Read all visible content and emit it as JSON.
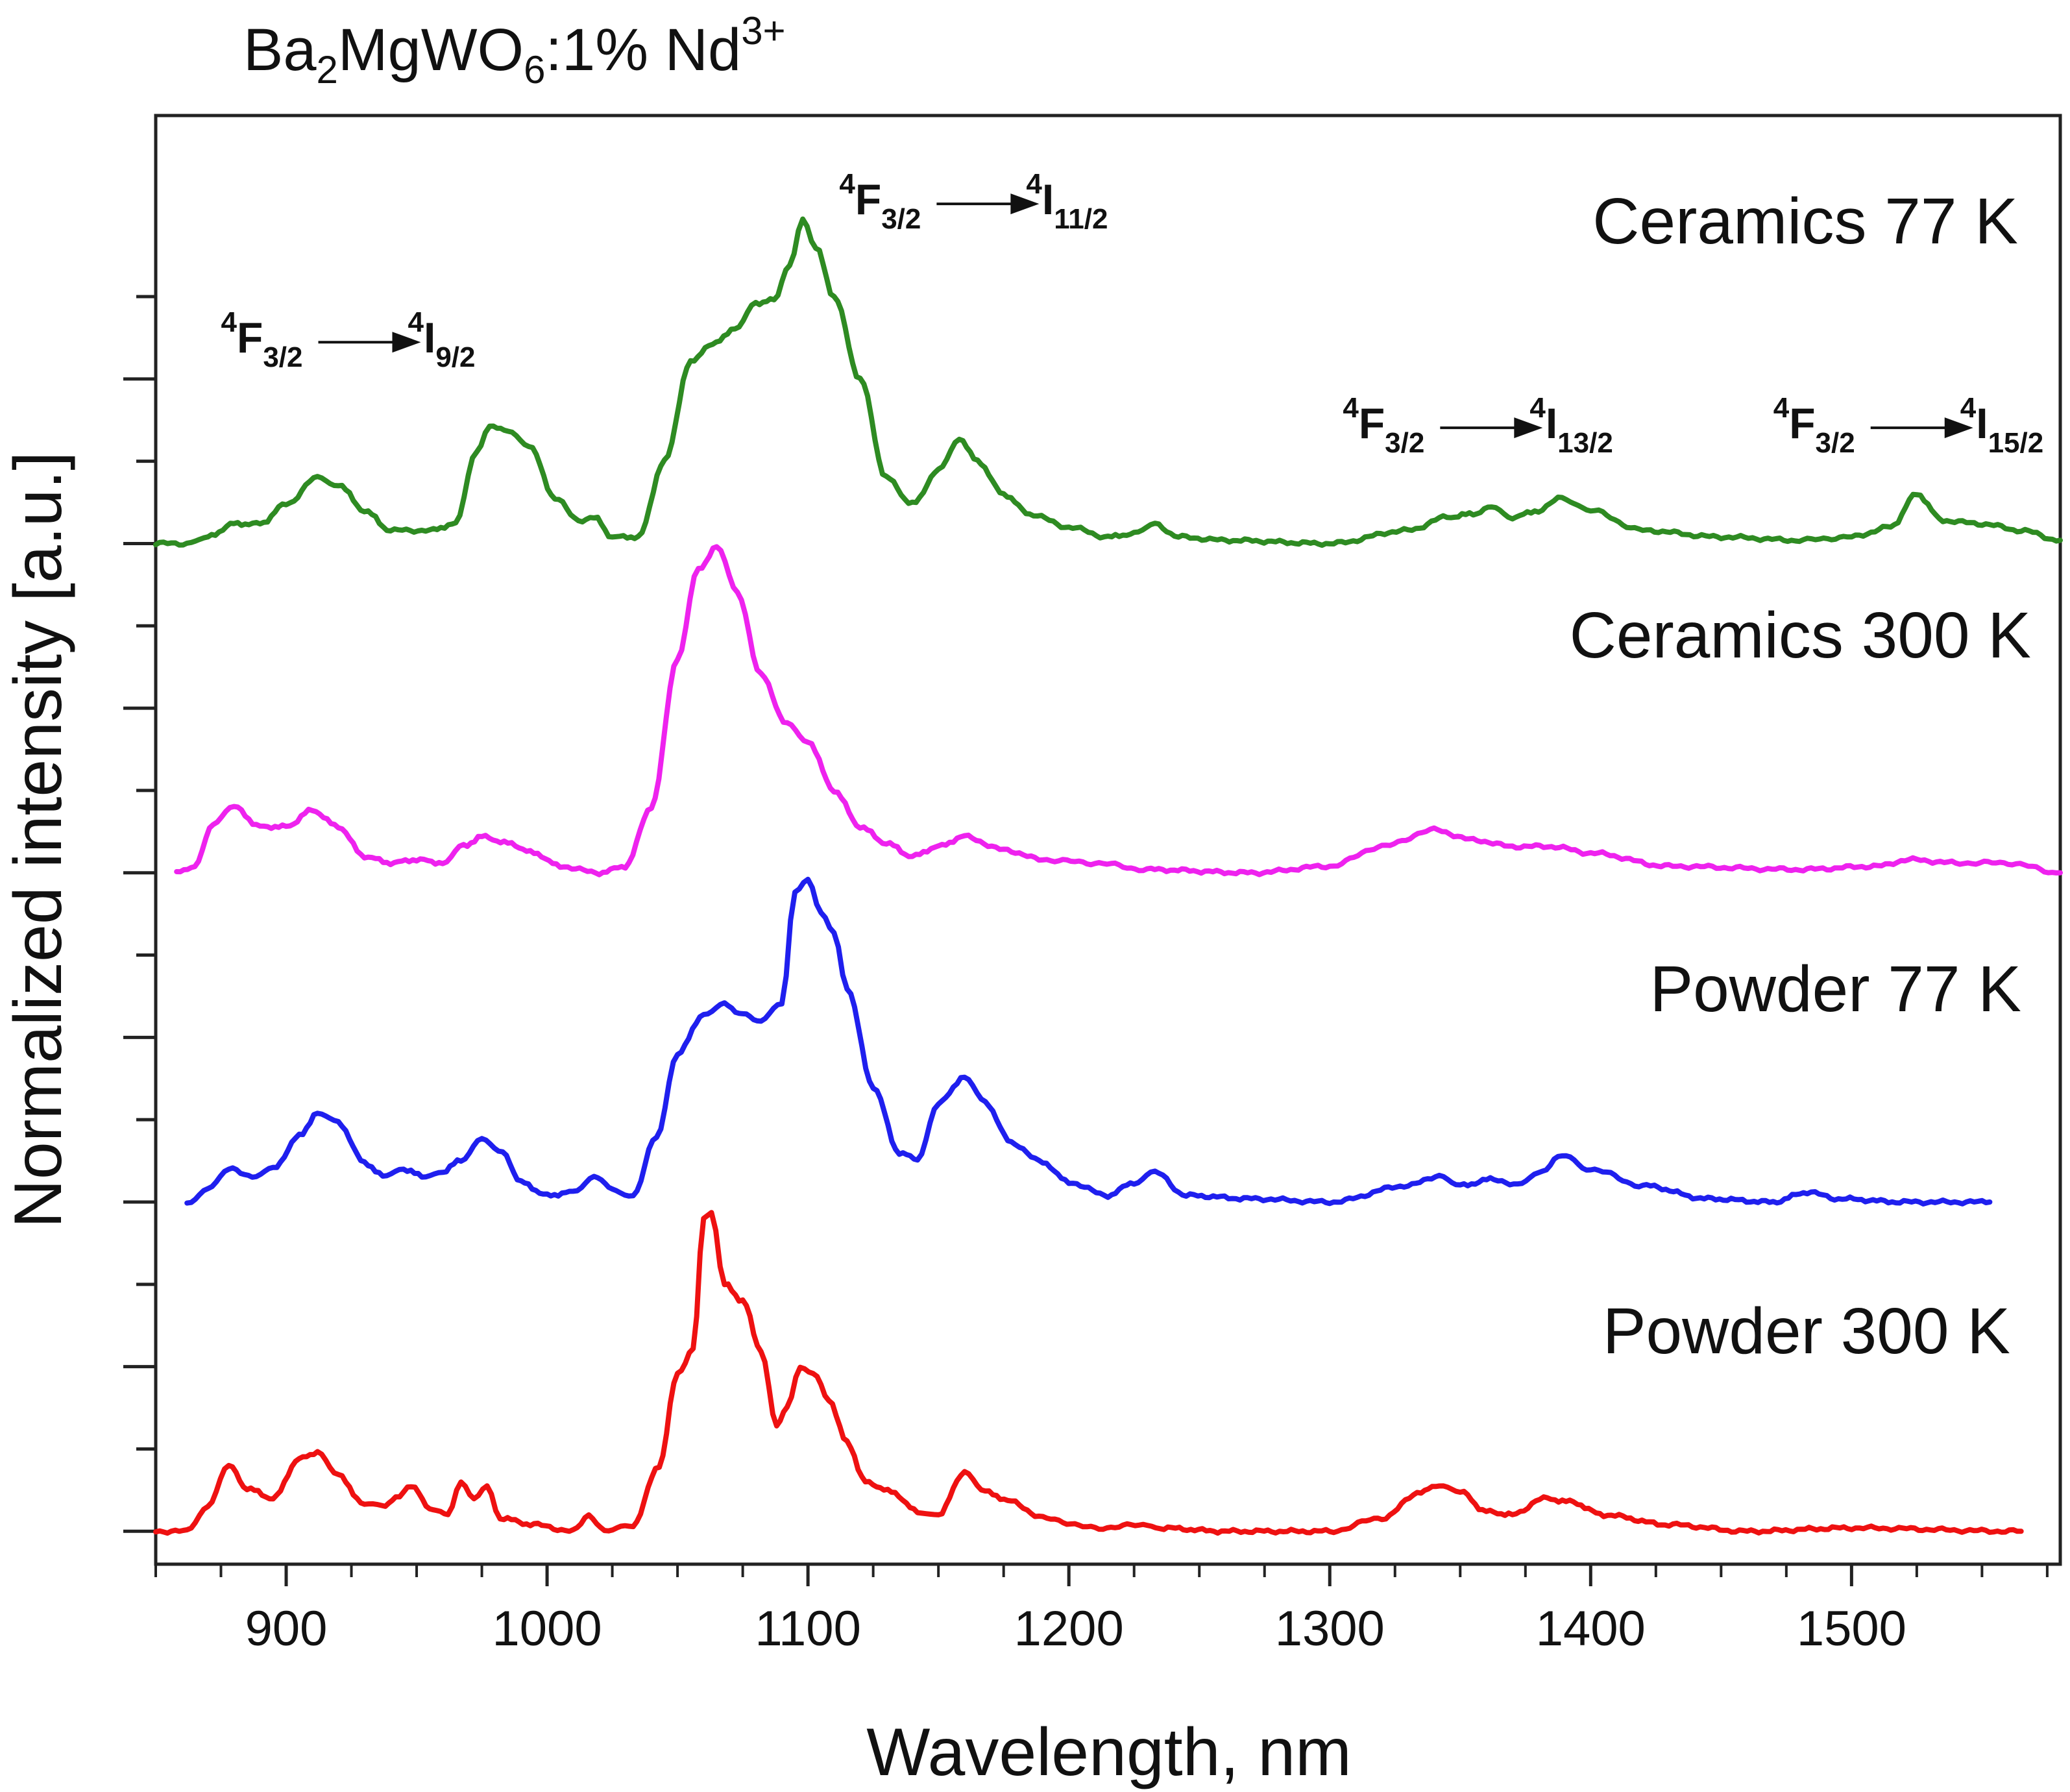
{
  "chart_data": {
    "type": "line",
    "title": {
      "base": "Ba",
      "s1": "2",
      "mid": "MgWO",
      "s2": "6",
      "rest": ":1% Nd",
      "sup": "3+"
    },
    "xlabel": "Wavelength, nm",
    "ylabel": "Normalized intensity [a.u.]",
    "xlim": [
      850,
      1580
    ],
    "ylim": [
      -0.1,
      4.3
    ],
    "xticks": [
      900,
      1000,
      1100,
      1200,
      1300,
      1400,
      1500
    ],
    "xtick_labels": [
      "900",
      "1000",
      "1100",
      "1200",
      "1300",
      "1400",
      "1500"
    ],
    "yticks_minor": [
      0,
      0.25,
      0.5,
      0.75,
      1,
      1.25,
      1.5,
      1.75,
      2,
      2.25,
      2.5,
      2.75,
      3,
      3.25,
      3.5,
      3.75
    ],
    "series": [
      {
        "name": "Ceramics 77 K",
        "label": "Ceramics 77 K",
        "color": "#2e8b22",
        "offset": 3,
        "x_end": 1580,
        "points": [
          [
            850,
            0.0
          ],
          [
            862,
            0.0
          ],
          [
            870,
            0.02
          ],
          [
            880,
            0.06
          ],
          [
            890,
            0.06
          ],
          [
            900,
            0.12
          ],
          [
            912,
            0.2
          ],
          [
            920,
            0.18
          ],
          [
            930,
            0.1
          ],
          [
            940,
            0.04
          ],
          [
            955,
            0.04
          ],
          [
            965,
            0.06
          ],
          [
            973,
            0.28
          ],
          [
            978,
            0.36
          ],
          [
            985,
            0.34
          ],
          [
            993,
            0.3
          ],
          [
            1003,
            0.14
          ],
          [
            1012,
            0.07
          ],
          [
            1018,
            0.08
          ],
          [
            1025,
            0.02
          ],
          [
            1035,
            0.02
          ],
          [
            1045,
            0.25
          ],
          [
            1055,
            0.55
          ],
          [
            1062,
            0.6
          ],
          [
            1072,
            0.65
          ],
          [
            1080,
            0.73
          ],
          [
            1087,
            0.74
          ],
          [
            1093,
            0.85
          ],
          [
            1098,
            0.99
          ],
          [
            1103,
            0.9
          ],
          [
            1110,
            0.75
          ],
          [
            1120,
            0.5
          ],
          [
            1130,
            0.2
          ],
          [
            1140,
            0.12
          ],
          [
            1150,
            0.22
          ],
          [
            1158,
            0.32
          ],
          [
            1165,
            0.25
          ],
          [
            1175,
            0.15
          ],
          [
            1185,
            0.09
          ],
          [
            1200,
            0.05
          ],
          [
            1215,
            0.02
          ],
          [
            1225,
            0.03
          ],
          [
            1233,
            0.06
          ],
          [
            1242,
            0.02
          ],
          [
            1260,
            0.01
          ],
          [
            1300,
            0.0
          ],
          [
            1330,
            0.04
          ],
          [
            1345,
            0.08
          ],
          [
            1355,
            0.09
          ],
          [
            1362,
            0.11
          ],
          [
            1370,
            0.08
          ],
          [
            1380,
            0.1
          ],
          [
            1389,
            0.14
          ],
          [
            1400,
            0.1
          ],
          [
            1420,
            0.04
          ],
          [
            1450,
            0.02
          ],
          [
            1480,
            0.01
          ],
          [
            1500,
            0.02
          ],
          [
            1515,
            0.05
          ],
          [
            1525,
            0.15
          ],
          [
            1535,
            0.07
          ],
          [
            1550,
            0.06
          ],
          [
            1565,
            0.04
          ],
          [
            1580,
            0.01
          ]
        ]
      },
      {
        "name": "Ceramics 300 K",
        "label": "Ceramics 300 K",
        "color": "#ee22ee",
        "offset": 2,
        "x_end": 1580,
        "points": [
          [
            858,
            0.0
          ],
          [
            865,
            0.02
          ],
          [
            872,
            0.15
          ],
          [
            880,
            0.2
          ],
          [
            890,
            0.14
          ],
          [
            900,
            0.14
          ],
          [
            910,
            0.19
          ],
          [
            920,
            0.14
          ],
          [
            930,
            0.05
          ],
          [
            940,
            0.03
          ],
          [
            950,
            0.04
          ],
          [
            960,
            0.03
          ],
          [
            968,
            0.08
          ],
          [
            975,
            0.11
          ],
          [
            985,
            0.09
          ],
          [
            995,
            0.06
          ],
          [
            1005,
            0.02
          ],
          [
            1020,
            0.0
          ],
          [
            1030,
            0.02
          ],
          [
            1040,
            0.2
          ],
          [
            1050,
            0.65
          ],
          [
            1058,
            0.92
          ],
          [
            1065,
            0.99
          ],
          [
            1073,
            0.85
          ],
          [
            1082,
            0.6
          ],
          [
            1092,
            0.45
          ],
          [
            1100,
            0.4
          ],
          [
            1110,
            0.25
          ],
          [
            1120,
            0.14
          ],
          [
            1130,
            0.09
          ],
          [
            1140,
            0.05
          ],
          [
            1150,
            0.08
          ],
          [
            1160,
            0.11
          ],
          [
            1175,
            0.07
          ],
          [
            1190,
            0.04
          ],
          [
            1210,
            0.03
          ],
          [
            1230,
            0.01
          ],
          [
            1270,
            0.0
          ],
          [
            1300,
            0.02
          ],
          [
            1320,
            0.08
          ],
          [
            1340,
            0.13
          ],
          [
            1355,
            0.1
          ],
          [
            1370,
            0.08
          ],
          [
            1385,
            0.08
          ],
          [
            1400,
            0.06
          ],
          [
            1430,
            0.02
          ],
          [
            1480,
            0.01
          ],
          [
            1510,
            0.02
          ],
          [
            1522,
            0.04
          ],
          [
            1540,
            0.03
          ],
          [
            1560,
            0.03
          ],
          [
            1580,
            0.0
          ]
        ]
      },
      {
        "name": "Powder 77 K",
        "label": "Powder 77 K",
        "color": "#1f1fee",
        "offset": 1,
        "x_end": 1553,
        "points": [
          [
            862,
            0.0
          ],
          [
            870,
            0.04
          ],
          [
            878,
            0.1
          ],
          [
            887,
            0.08
          ],
          [
            895,
            0.1
          ],
          [
            905,
            0.2
          ],
          [
            912,
            0.27
          ],
          [
            920,
            0.24
          ],
          [
            930,
            0.12
          ],
          [
            937,
            0.08
          ],
          [
            945,
            0.1
          ],
          [
            952,
            0.08
          ],
          [
            960,
            0.09
          ],
          [
            967,
            0.13
          ],
          [
            975,
            0.19
          ],
          [
            983,
            0.15
          ],
          [
            990,
            0.06
          ],
          [
            1000,
            0.02
          ],
          [
            1010,
            0.03
          ],
          [
            1018,
            0.08
          ],
          [
            1025,
            0.04
          ],
          [
            1033,
            0.02
          ],
          [
            1042,
            0.2
          ],
          [
            1050,
            0.45
          ],
          [
            1060,
            0.57
          ],
          [
            1068,
            0.6
          ],
          [
            1075,
            0.57
          ],
          [
            1082,
            0.55
          ],
          [
            1090,
            0.6
          ],
          [
            1095,
            0.94
          ],
          [
            1100,
            0.98
          ],
          [
            1105,
            0.88
          ],
          [
            1110,
            0.82
          ],
          [
            1115,
            0.65
          ],
          [
            1125,
            0.35
          ],
          [
            1135,
            0.15
          ],
          [
            1142,
            0.13
          ],
          [
            1150,
            0.3
          ],
          [
            1160,
            0.38
          ],
          [
            1168,
            0.3
          ],
          [
            1178,
            0.18
          ],
          [
            1190,
            0.12
          ],
          [
            1200,
            0.06
          ],
          [
            1215,
            0.02
          ],
          [
            1225,
            0.06
          ],
          [
            1233,
            0.09
          ],
          [
            1245,
            0.02
          ],
          [
            1270,
            0.01
          ],
          [
            1300,
            0.0
          ],
          [
            1330,
            0.05
          ],
          [
            1342,
            0.08
          ],
          [
            1350,
            0.05
          ],
          [
            1363,
            0.07
          ],
          [
            1372,
            0.05
          ],
          [
            1380,
            0.09
          ],
          [
            1389,
            0.14
          ],
          [
            1400,
            0.1
          ],
          [
            1420,
            0.05
          ],
          [
            1445,
            0.01
          ],
          [
            1470,
            0.0
          ],
          [
            1483,
            0.03
          ],
          [
            1495,
            0.01
          ],
          [
            1520,
            0.0
          ],
          [
            1553,
            0.0
          ]
        ]
      },
      {
        "name": "Powder 300 K",
        "label": "Powder 300 K",
        "color": "#ee1111",
        "offset": 0,
        "x_end": 1565,
        "points": [
          [
            850,
            0.0
          ],
          [
            862,
            0.0
          ],
          [
            870,
            0.08
          ],
          [
            878,
            0.2
          ],
          [
            885,
            0.13
          ],
          [
            895,
            0.1
          ],
          [
            905,
            0.22
          ],
          [
            912,
            0.24
          ],
          [
            920,
            0.17
          ],
          [
            930,
            0.08
          ],
          [
            938,
            0.08
          ],
          [
            942,
            0.1
          ],
          [
            948,
            0.14
          ],
          [
            955,
            0.07
          ],
          [
            962,
            0.05
          ],
          [
            967,
            0.15
          ],
          [
            972,
            0.1
          ],
          [
            977,
            0.14
          ],
          [
            982,
            0.04
          ],
          [
            995,
            0.02
          ],
          [
            1010,
            0.0
          ],
          [
            1016,
            0.05
          ],
          [
            1022,
            0.0
          ],
          [
            1033,
            0.02
          ],
          [
            1043,
            0.2
          ],
          [
            1050,
            0.48
          ],
          [
            1056,
            0.55
          ],
          [
            1060,
            0.95
          ],
          [
            1063,
            0.97
          ],
          [
            1068,
            0.75
          ],
          [
            1075,
            0.7
          ],
          [
            1082,
            0.55
          ],
          [
            1088,
            0.32
          ],
          [
            1092,
            0.38
          ],
          [
            1097,
            0.5
          ],
          [
            1102,
            0.48
          ],
          [
            1108,
            0.4
          ],
          [
            1115,
            0.27
          ],
          [
            1122,
            0.15
          ],
          [
            1132,
            0.12
          ],
          [
            1142,
            0.06
          ],
          [
            1150,
            0.05
          ],
          [
            1160,
            0.18
          ],
          [
            1168,
            0.12
          ],
          [
            1178,
            0.09
          ],
          [
            1190,
            0.04
          ],
          [
            1210,
            0.01
          ],
          [
            1230,
            0.02
          ],
          [
            1235,
            0.01
          ],
          [
            1260,
            0.0
          ],
          [
            1300,
            0.0
          ],
          [
            1320,
            0.04
          ],
          [
            1335,
            0.12
          ],
          [
            1342,
            0.14
          ],
          [
            1350,
            0.12
          ],
          [
            1360,
            0.06
          ],
          [
            1370,
            0.05
          ],
          [
            1382,
            0.1
          ],
          [
            1392,
            0.09
          ],
          [
            1405,
            0.05
          ],
          [
            1430,
            0.02
          ],
          [
            1460,
            0.0
          ],
          [
            1500,
            0.01
          ],
          [
            1565,
            0.0
          ]
        ]
      }
    ],
    "annotations": [
      {
        "name": "transition-9-2",
        "sup1": "4",
        "main": "F",
        "sub1": "3/2",
        "sup2": "4",
        "main2": "I",
        "sub2": "9/2",
        "x": 875,
        "y": 3.58
      },
      {
        "name": "transition-11-2",
        "sup1": "4",
        "main": "F",
        "sub1": "3/2",
        "sup2": "4",
        "main2": "I",
        "sub2": "11/2",
        "x": 1112,
        "y": 4.0
      },
      {
        "name": "transition-13-2",
        "sup1": "4",
        "main": "F",
        "sub1": "3/2",
        "sup2": "4",
        "main2": "I",
        "sub2": "13/2",
        "x": 1305,
        "y": 3.32
      },
      {
        "name": "transition-15-2",
        "sup1": "4",
        "main": "F",
        "sub1": "3/2",
        "sup2": "4",
        "main2": "I",
        "sub2": "15/2",
        "x": 1470,
        "y": 3.32
      }
    ]
  }
}
